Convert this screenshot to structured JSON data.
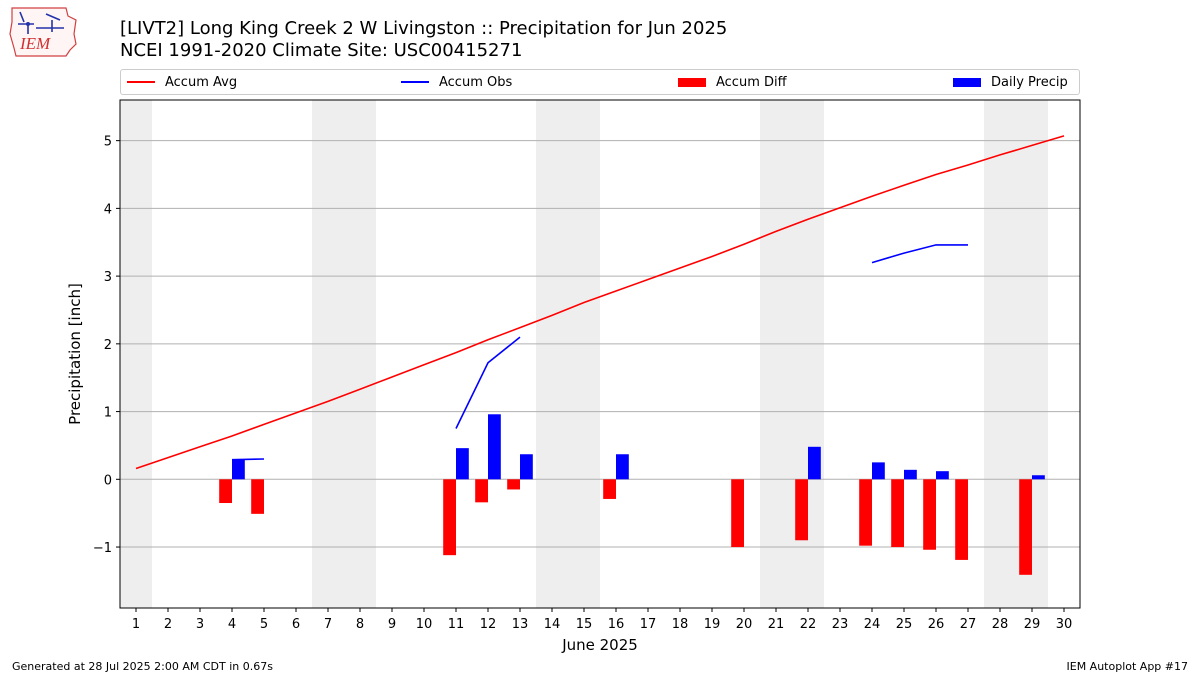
{
  "logo": {
    "text": "IEM"
  },
  "title_line1": "[LIVT2] Long King Creek 2 W Livingston :: Precipitation for Jun 2025",
  "title_line2": "NCEI 1991-2020 Climate Site: USC00415271",
  "legend": [
    {
      "label": "Accum Avg",
      "kind": "line",
      "color": "#ff0000"
    },
    {
      "label": "Accum Obs",
      "kind": "line",
      "color": "#0000ff"
    },
    {
      "label": "Accum Diff",
      "kind": "bar",
      "color": "#ff0000"
    },
    {
      "label": "Daily Precip",
      "kind": "bar",
      "color": "#0000ff"
    }
  ],
  "footer_left": "Generated at 28 Jul 2025 2:00 AM CDT in 0.67s",
  "footer_right": "IEM Autoplot App #17",
  "chart_data": {
    "type": "bar",
    "xlabel": "June 2025",
    "ylabel": "Precipitation [inch]",
    "days": [
      1,
      2,
      3,
      4,
      5,
      6,
      7,
      8,
      9,
      10,
      11,
      12,
      13,
      14,
      15,
      16,
      17,
      18,
      19,
      20,
      21,
      22,
      23,
      24,
      25,
      26,
      27,
      28,
      29,
      30
    ],
    "xlim": [
      0.5,
      30.5
    ],
    "ylim": [
      -1.9,
      5.6
    ],
    "yticks": [
      -1,
      0,
      1,
      2,
      3,
      4,
      5
    ],
    "ytick_labels": [
      "−1",
      "0",
      "1",
      "2",
      "3",
      "4",
      "5"
    ],
    "weekend_spans": [
      [
        0.5,
        1.5
      ],
      [
        6.5,
        8.5
      ],
      [
        13.5,
        15.5
      ],
      [
        20.5,
        22.5
      ],
      [
        27.5,
        29.5
      ]
    ],
    "series": [
      {
        "name": "Accum Avg",
        "kind": "line",
        "color": "#ff0000",
        "x": [
          1,
          2,
          3,
          4,
          5,
          6,
          7,
          8,
          9,
          10,
          11,
          12,
          13,
          14,
          15,
          16,
          17,
          18,
          19,
          20,
          21,
          22,
          23,
          24,
          25,
          26,
          27,
          28,
          29,
          30
        ],
        "values": [
          0.16,
          0.32,
          0.48,
          0.64,
          0.81,
          0.98,
          1.15,
          1.33,
          1.51,
          1.69,
          1.87,
          2.06,
          2.24,
          2.42,
          2.61,
          2.78,
          2.95,
          3.12,
          3.29,
          3.47,
          3.66,
          3.84,
          4.01,
          4.18,
          4.34,
          4.5,
          4.64,
          4.79,
          4.93,
          5.07
        ]
      },
      {
        "name": "Accum Obs",
        "kind": "line",
        "color": "#0000ff",
        "segments": [
          {
            "x": [
              4,
              5
            ],
            "values": [
              0.29,
              0.3
            ]
          },
          {
            "x": [
              11,
              12,
              13
            ],
            "values": [
              0.75,
              1.72,
              2.1
            ]
          },
          {
            "x": [
              24,
              25,
              26,
              27
            ],
            "values": [
              3.2,
              3.34,
              3.46,
              3.46
            ]
          }
        ]
      },
      {
        "name": "Accum Diff",
        "kind": "bar",
        "color": "#ff0000",
        "x": [
          3.8,
          4.8,
          10.8,
          11.8,
          12.8,
          15.8,
          19.8,
          21.8,
          23.8,
          24.8,
          25.8,
          26.8,
          28.8
        ],
        "values": [
          -0.35,
          -0.51,
          -1.12,
          -0.34,
          -0.15,
          -0.29,
          -1.0,
          -0.9,
          -0.98,
          -1.0,
          -1.04,
          -1.19,
          -1.41
        ]
      },
      {
        "name": "Daily Precip",
        "kind": "bar",
        "color": "#0000ff",
        "x": [
          4.2,
          11.2,
          12.2,
          13.2,
          16.2,
          22.2,
          24.2,
          25.2,
          26.2,
          29.2
        ],
        "values": [
          0.29,
          0.46,
          0.96,
          0.37,
          0.37,
          0.48,
          0.25,
          0.14,
          0.12,
          0.06
        ]
      }
    ]
  }
}
